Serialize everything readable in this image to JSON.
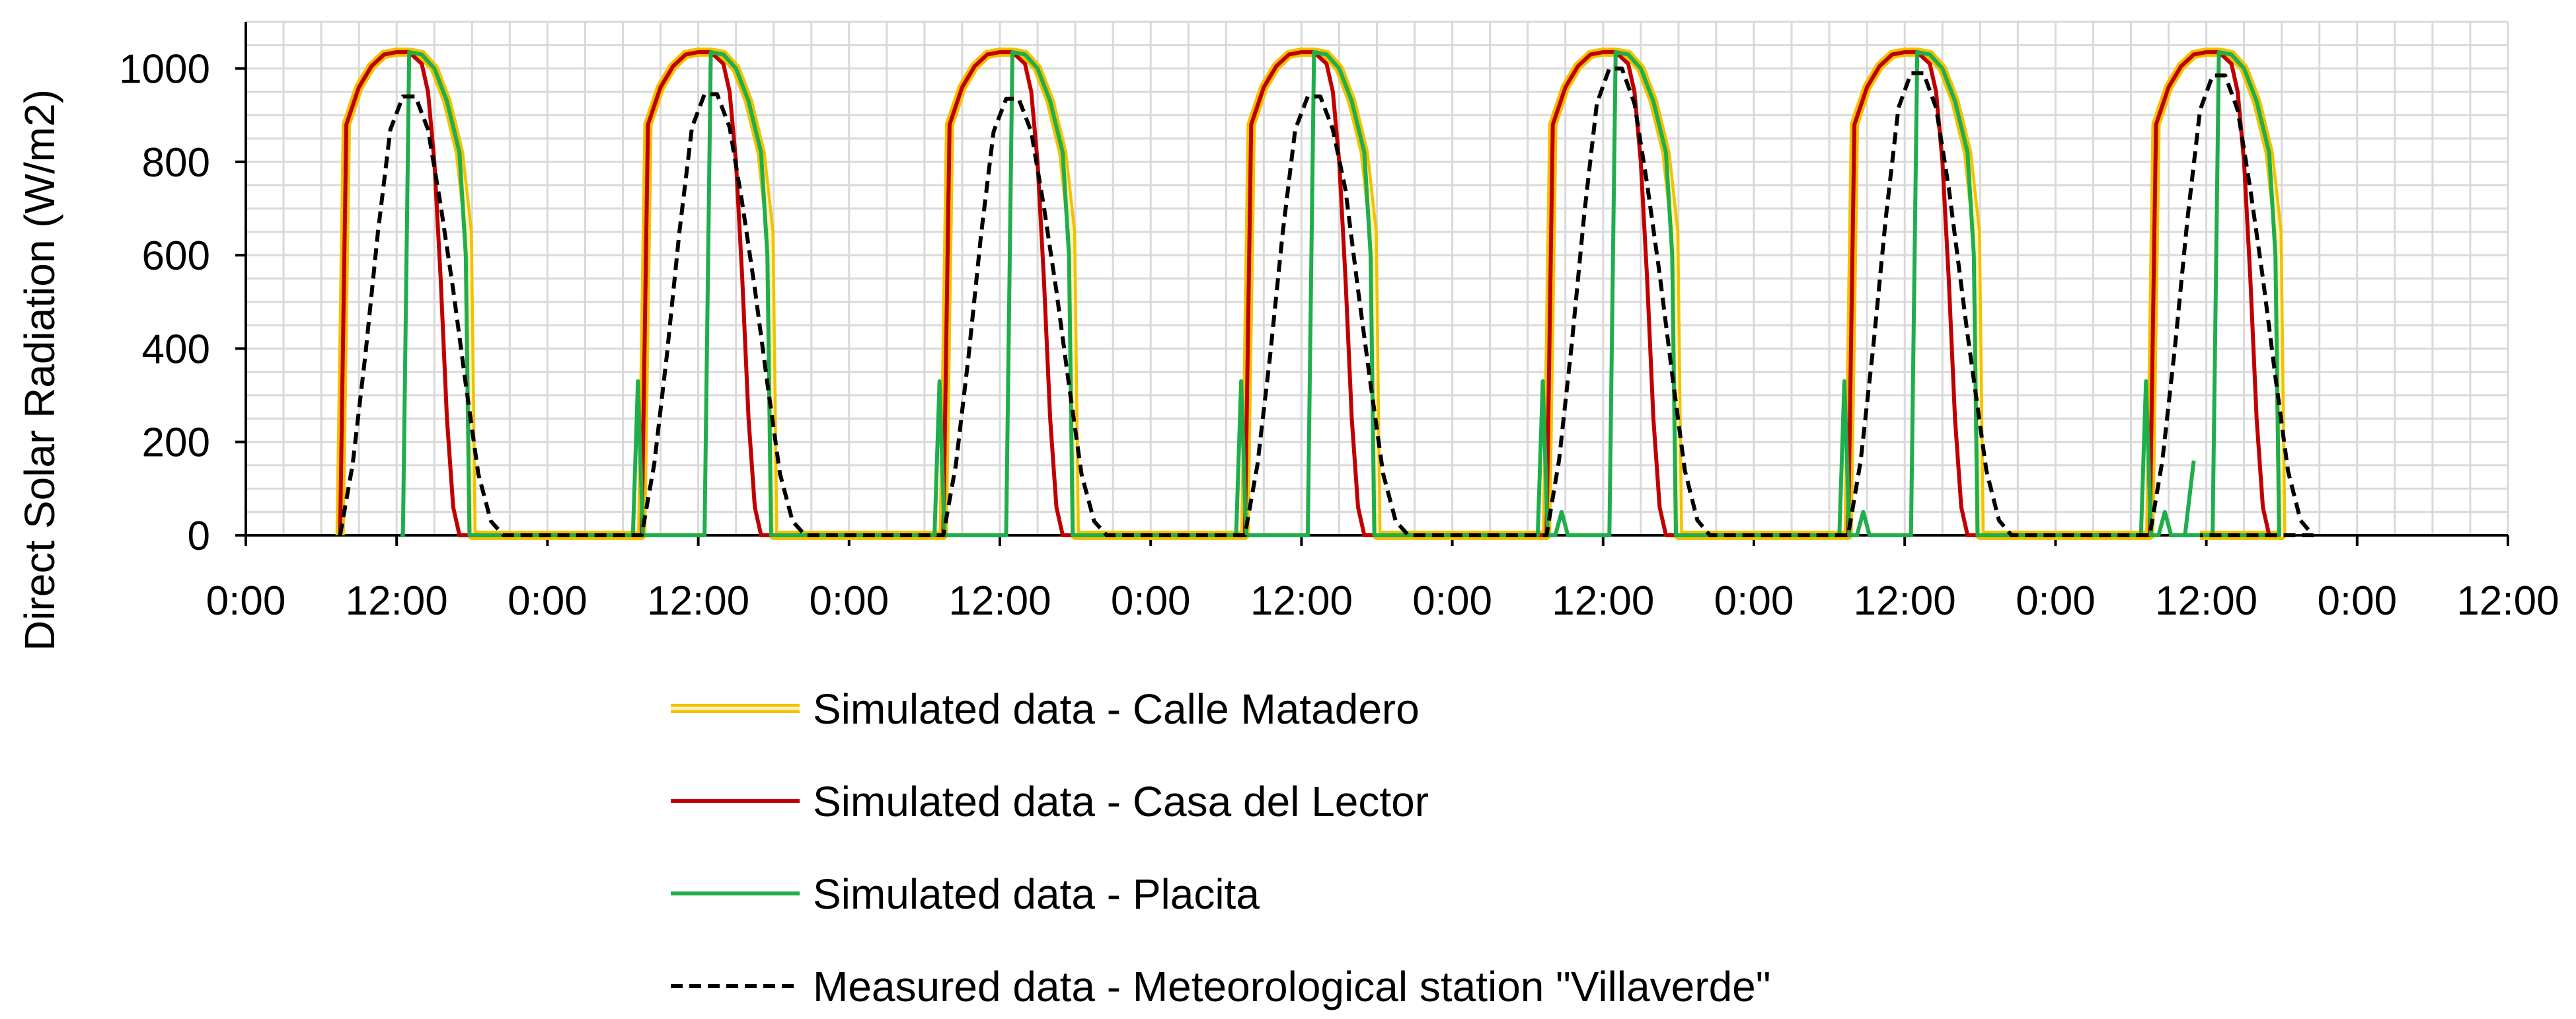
{
  "chart_data": {
    "type": "line",
    "title": "",
    "xlabel": "",
    "ylabel": "Direct Solar Radiation (W/m2)",
    "x_range_hours": [
      0,
      180
    ],
    "x_tick_labels": [
      "0:00",
      "12:00",
      "0:00",
      "12:00",
      "0:00",
      "12:00",
      "0:00",
      "12:00",
      "0:00",
      "12:00",
      "0:00",
      "12:00",
      "0:00",
      "12:00",
      "0:00",
      "12:00"
    ],
    "y_ticks": [
      0,
      200,
      400,
      600,
      800,
      1000
    ],
    "ylim": [
      0,
      1100
    ],
    "grid": true,
    "legend_position": "bottom",
    "days": [
      {
        "measured_peak": 940,
        "notch": null
      },
      {
        "measured_peak": 945,
        "notch": null
      },
      {
        "measured_peak": 935,
        "notch": null
      },
      {
        "measured_peak": 940,
        "notch": {
          "hour": 15.5,
          "value": 740
        }
      },
      {
        "measured_peak": 1000,
        "notch": null
      },
      {
        "measured_peak": 990,
        "notch": {
          "hour": 17.0,
          "value": 430
        }
      },
      {
        "measured_peak": 985,
        "notch": null
      }
    ],
    "series": [
      {
        "name": "Simulated data - Calle Matadero",
        "color": "#f2c200",
        "style": "double",
        "points": [
          [
            7.5,
            0
          ],
          [
            8,
            880
          ],
          [
            9,
            960
          ],
          [
            10,
            1005
          ],
          [
            11,
            1030
          ],
          [
            12,
            1035
          ],
          [
            13,
            1035
          ],
          [
            14,
            1030
          ],
          [
            15,
            1000
          ],
          [
            16,
            930
          ],
          [
            17,
            820
          ],
          [
            17.7,
            650
          ],
          [
            18,
            0
          ]
        ]
      },
      {
        "name": "Simulated data - Casa del Lector",
        "color": "#c00000",
        "style": "solid",
        "points": [
          [
            7.5,
            0
          ],
          [
            8,
            880
          ],
          [
            9,
            960
          ],
          [
            10,
            1005
          ],
          [
            11,
            1030
          ],
          [
            12,
            1035
          ],
          [
            13,
            1035
          ],
          [
            14,
            1010
          ],
          [
            14.5,
            950
          ],
          [
            15,
            800
          ],
          [
            15.5,
            550
          ],
          [
            16,
            250
          ],
          [
            16.5,
            60
          ],
          [
            17,
            0
          ]
        ]
      },
      {
        "name": "Simulated data - Placita",
        "color": "#1fae4b",
        "style": "solid",
        "points": [
          [
            12.5,
            0
          ],
          [
            13,
            1035
          ],
          [
            14,
            1030
          ],
          [
            15,
            1000
          ],
          [
            16,
            930
          ],
          [
            17,
            820
          ],
          [
            17.5,
            600
          ],
          [
            17.8,
            0
          ]
        ],
        "morning_spike": 330,
        "small_spike": 50
      },
      {
        "name": "Measured data - Meteorological station \"Villaverde\"",
        "color": "#000000",
        "style": "dashed",
        "points": [
          [
            7.5,
            0
          ],
          [
            8.5,
            150
          ],
          [
            9.5,
            380
          ],
          [
            10.5,
            640
          ],
          [
            11.5,
            860
          ],
          [
            12.5,
            930
          ],
          [
            13.5,
            930
          ],
          [
            14.5,
            860
          ],
          [
            15.5,
            700
          ],
          [
            16.5,
            520
          ],
          [
            17.5,
            320
          ],
          [
            18.5,
            130
          ],
          [
            19.5,
            30
          ],
          [
            20.5,
            0
          ]
        ]
      }
    ]
  }
}
